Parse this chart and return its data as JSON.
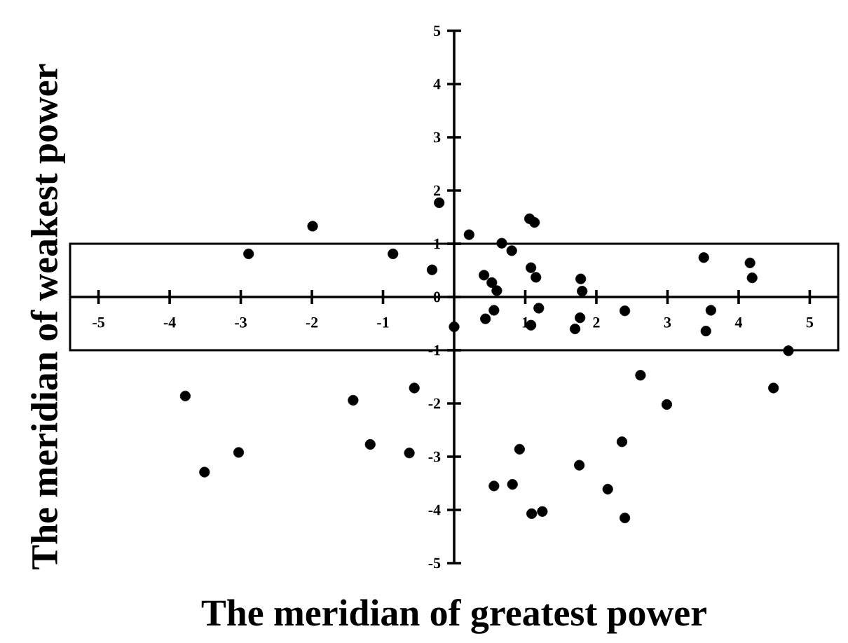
{
  "chart_data": {
    "type": "scatter",
    "xlabel": "The meridian of greatest power",
    "ylabel": "The meridian of weakest power",
    "x": [
      -0.21,
      -1.99,
      -2.89,
      -0.86,
      -0.31,
      0.0,
      0.21,
      0.67,
      0.81,
      1.06,
      1.13,
      1.08,
      1.15,
      0.42,
      0.53,
      0.6,
      1.19,
      0.56,
      0.44,
      1.08,
      1.78,
      1.8,
      1.77,
      1.7,
      2.4,
      3.51,
      3.61,
      3.54,
      4.16,
      4.19,
      4.7,
      -3.78,
      -3.51,
      -3.03,
      -1.42,
      -1.18,
      -0.56,
      -0.63,
      2.62,
      2.99,
      4.49,
      0.92,
      0.56,
      0.82,
      1.09,
      1.24,
      1.76,
      2.16,
      2.36,
      2.4
    ],
    "values": [
      1.77,
      1.33,
      0.81,
      0.81,
      0.51,
      -0.56,
      1.17,
      1.01,
      0.87,
      1.47,
      1.4,
      0.55,
      0.37,
      0.41,
      0.27,
      0.12,
      -0.21,
      -0.25,
      -0.41,
      -0.53,
      0.34,
      0.11,
      -0.39,
      -0.6,
      -0.26,
      0.74,
      -0.25,
      -0.64,
      0.64,
      0.36,
      -1.01,
      -1.86,
      -3.29,
      -2.92,
      -1.94,
      -2.77,
      -1.71,
      -2.93,
      -1.47,
      -2.02,
      -1.71,
      -2.86,
      -3.55,
      -3.52,
      -4.07,
      -4.03,
      -3.16,
      -3.61,
      -2.72,
      -4.15
    ],
    "color": "#000000",
    "marker": "circle",
    "xlim": [
      -5.4,
      5.4
    ],
    "ylim": [
      -5,
      5
    ],
    "xticks": [
      -5,
      -4,
      -3,
      -2,
      -1,
      1,
      2,
      3,
      4,
      5
    ],
    "yticks": [
      -5,
      -4,
      -3,
      -2,
      -1,
      0,
      1,
      2,
      3,
      4,
      5
    ],
    "bands": [
      {
        "axis": "y",
        "from": -1,
        "to": 1,
        "color": "#ffffff"
      }
    ],
    "grid": false
  }
}
